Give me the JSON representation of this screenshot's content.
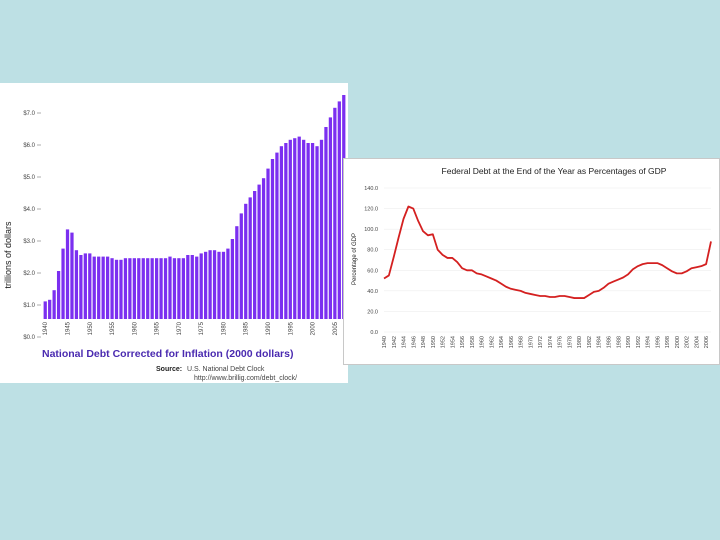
{
  "chart_data": [
    {
      "type": "bar",
      "title": "National Debt Corrected for Inflation (2000 dollars)",
      "ylabel": "trillions of dollars",
      "ylim": [
        0,
        7
      ],
      "yticks": [
        "$0.0",
        "$1.0",
        "$2.0",
        "$3.0",
        "$4.0",
        "$5.0",
        "$6.0",
        "$7.0"
      ],
      "xticks": [
        "1940",
        "1945",
        "1950",
        "1955",
        "1960",
        "1965",
        "1970",
        "1975",
        "1980",
        "1985",
        "1990",
        "1995",
        "2000",
        "2005"
      ],
      "x": [
        1940,
        1941,
        1942,
        1943,
        1944,
        1945,
        1946,
        1947,
        1948,
        1949,
        1950,
        1951,
        1952,
        1953,
        1954,
        1955,
        1956,
        1957,
        1958,
        1959,
        1960,
        1961,
        1962,
        1963,
        1964,
        1965,
        1966,
        1967,
        1968,
        1969,
        1970,
        1971,
        1972,
        1973,
        1974,
        1975,
        1976,
        1977,
        1978,
        1979,
        1980,
        1981,
        1982,
        1983,
        1984,
        1985,
        1986,
        1987,
        1988,
        1989,
        1990,
        1991,
        1992,
        1993,
        1994,
        1995,
        1996,
        1997,
        1998,
        1999,
        2000,
        2001,
        2002,
        2003,
        2004,
        2005,
        2006,
        2007
      ],
      "values": [
        0.55,
        0.6,
        0.9,
        1.5,
        2.2,
        2.8,
        2.7,
        2.15,
        2.0,
        2.05,
        2.05,
        1.95,
        1.95,
        1.95,
        1.95,
        1.9,
        1.85,
        1.85,
        1.9,
        1.9,
        1.9,
        1.9,
        1.9,
        1.9,
        1.9,
        1.9,
        1.9,
        1.9,
        1.95,
        1.9,
        1.9,
        1.9,
        2.0,
        2.0,
        1.95,
        2.05,
        2.1,
        2.15,
        2.15,
        2.1,
        2.1,
        2.2,
        2.5,
        2.9,
        3.3,
        3.6,
        3.8,
        4.0,
        4.2,
        4.4,
        4.7,
        5.0,
        5.2,
        5.4,
        5.5,
        5.6,
        5.65,
        5.7,
        5.6,
        5.5,
        5.5,
        5.4,
        5.6,
        6.0,
        6.3,
        6.6,
        6.8,
        7.0
      ],
      "source_label": "Source:",
      "source_name": "U.S. National Debt Clock",
      "source_url": "http://www.brillig.com/debt_clock/",
      "bar_color": "#7b2ff0"
    },
    {
      "type": "line",
      "title": "Federal Debt at the End of the Year as Percentages of GDP",
      "ylabel": "Percentage of GDP",
      "ylim": [
        0,
        140
      ],
      "yticks": [
        "0.0",
        "20.0",
        "40.0",
        "60.0",
        "80.0",
        "100.0",
        "120.0",
        "140.0"
      ],
      "xticks": [
        "1940",
        "1942",
        "1944",
        "1946",
        "1948",
        "1950",
        "1952",
        "1954",
        "1956",
        "1958",
        "1960",
        "1962",
        "1964",
        "1966",
        "1968",
        "1970",
        "1972",
        "1974",
        "1976",
        "1978",
        "1980",
        "1982",
        "1984",
        "1986",
        "1988",
        "1990",
        "1992",
        "1994",
        "1996",
        "1998",
        "2000",
        "2002",
        "2004",
        "2006"
      ],
      "x": [
        1940,
        1941,
        1942,
        1943,
        1944,
        1945,
        1946,
        1947,
        1948,
        1949,
        1950,
        1951,
        1952,
        1953,
        1954,
        1955,
        1956,
        1957,
        1958,
        1959,
        1960,
        1961,
        1962,
        1963,
        1964,
        1965,
        1966,
        1967,
        1968,
        1969,
        1970,
        1971,
        1972,
        1973,
        1974,
        1975,
        1976,
        1977,
        1978,
        1979,
        1980,
        1981,
        1982,
        1983,
        1984,
        1985,
        1986,
        1987,
        1988,
        1989,
        1990,
        1991,
        1992,
        1993,
        1994,
        1995,
        1996,
        1997,
        1998,
        1999,
        2000,
        2001,
        2002,
        2003,
        2004,
        2005,
        2006,
        2007
      ],
      "values": [
        52,
        55,
        73,
        92,
        110,
        122,
        120,
        108,
        98,
        94,
        95,
        80,
        75,
        72,
        72,
        68,
        62,
        60,
        60,
        57,
        56,
        54,
        52,
        50,
        47,
        44,
        42,
        41,
        40,
        38,
        37,
        36,
        35,
        35,
        34,
        34,
        35,
        35,
        34,
        33,
        33,
        33,
        36,
        39,
        40,
        43,
        47,
        49,
        51,
        53,
        56,
        61,
        64,
        66,
        67,
        67,
        67,
        65,
        62,
        59,
        57,
        57,
        59,
        62,
        63,
        64,
        66,
        88
      ],
      "line_color": "#d42020"
    }
  ]
}
